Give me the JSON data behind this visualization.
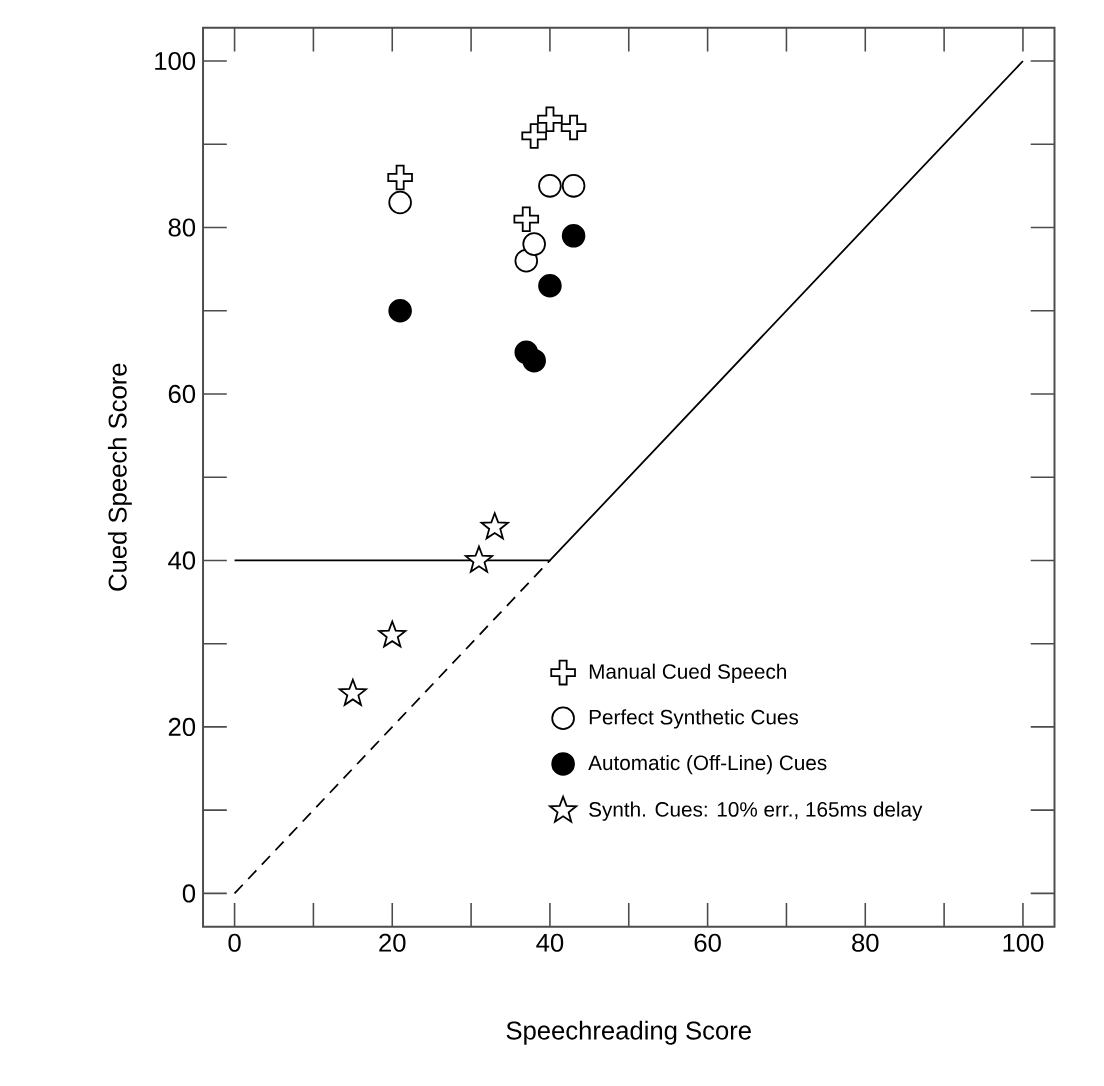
{
  "chart_data": {
    "type": "scatter",
    "xlabel": "Speechreading Score",
    "ylabel": "Cued Speech Score",
    "xlim": [
      -4,
      104
    ],
    "ylim": [
      -4,
      104
    ],
    "xticks": [
      0,
      {
        "value": 10,
        "label": null
      },
      20,
      {
        "value": 30,
        "label": null
      },
      40,
      {
        "value": 50,
        "label": null
      },
      60,
      {
        "value": 70,
        "label": null
      },
      80,
      {
        "value": 90,
        "label": null
      },
      100
    ],
    "yticks": [
      0,
      {
        "value": 10,
        "label": null
      },
      20,
      {
        "value": 30,
        "label": null
      },
      40,
      {
        "value": 50,
        "label": null
      },
      60,
      {
        "value": 70,
        "label": null
      },
      80,
      {
        "value": 90,
        "label": null
      },
      100
    ],
    "grid": false,
    "legend": "bottom right",
    "series": [
      {
        "name": "Manual Cued Speech",
        "marker": "cross",
        "color": "#ffffff",
        "x": [
          21,
          37,
          38,
          40,
          43
        ],
        "values": [
          86,
          81,
          91,
          93,
          92
        ]
      },
      {
        "name": "Perfect Synthetic Cues",
        "marker": "circle",
        "color": "#ffffff",
        "x": [
          21,
          37,
          38,
          40,
          43
        ],
        "values": [
          83,
          76,
          78,
          85,
          85
        ]
      },
      {
        "name": "Automatic (Off-Line) Cues",
        "marker": "circle",
        "color": "#000000",
        "x": [
          21,
          37,
          38,
          40,
          43
        ],
        "values": [
          70,
          65,
          64,
          73,
          79
        ]
      },
      {
        "name": "Synth. Cues: 10% err., 165ms delay",
        "marker": "star",
        "color": "#ffffff",
        "x": [
          15,
          20,
          31,
          33
        ],
        "values": [
          24,
          31,
          40,
          44
        ]
      },
      {
        "type": "line",
        "line_style": "solid",
        "color": "#000000",
        "x": [
          0,
          40,
          100
        ],
        "values": [
          40,
          40,
          100
        ]
      },
      {
        "type": "line",
        "line_style": "dashed",
        "color": "#000000",
        "x": [
          0,
          40
        ],
        "values": [
          0,
          40
        ]
      }
    ]
  }
}
